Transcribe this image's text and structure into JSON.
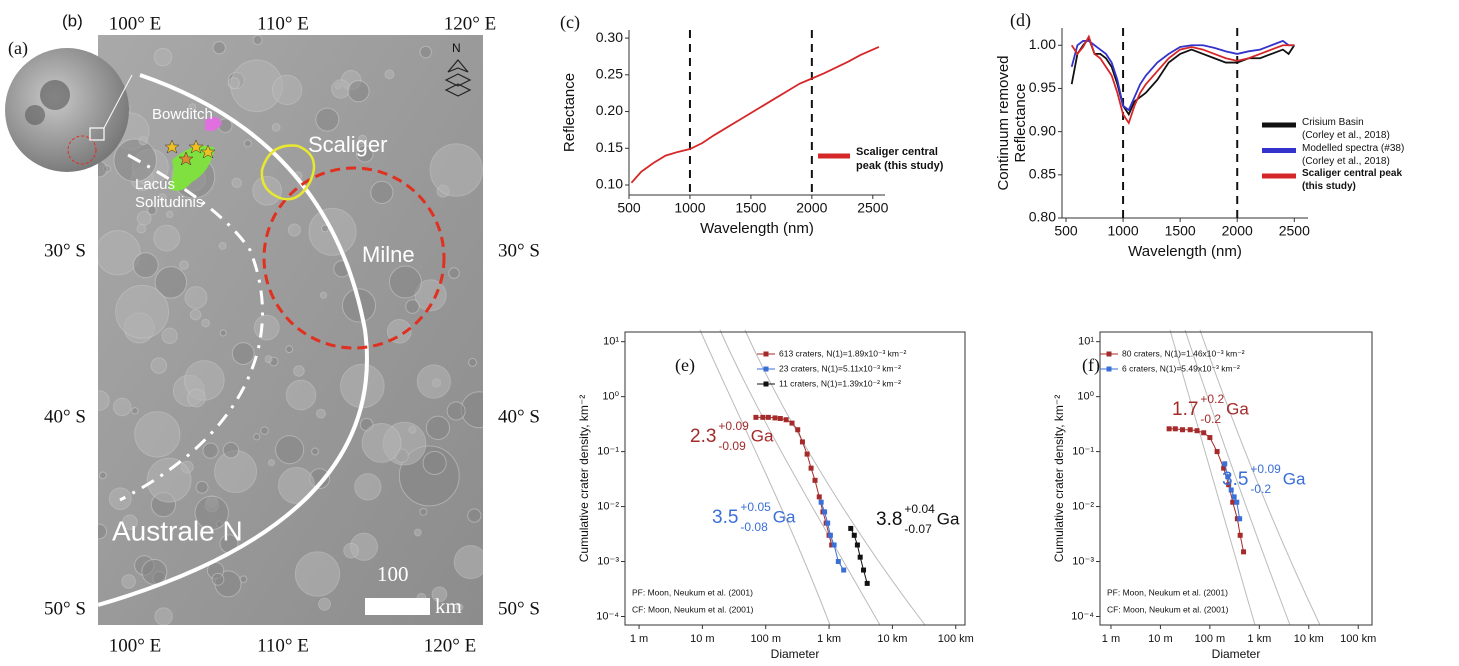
{
  "map": {
    "panel_a": "(a)",
    "panel_b": "(b)",
    "lon_labels": [
      "100° E",
      "110° E",
      "120° E"
    ],
    "lat_labels": [
      "30° S",
      "40° S",
      "50° S"
    ],
    "features": {
      "bowditch": "Bowditch",
      "lacus": "Lacus Solitudinis",
      "scaliger": "Scaliger",
      "milne": "Milne",
      "australe": "Australe N"
    },
    "scale_value": "100",
    "scale_unit": "km",
    "north": "N"
  },
  "chart_data": [
    {
      "type": "line",
      "panel_label": "(c)",
      "x_label": "Wavelength (nm)",
      "y_label": "Reflectance",
      "xlim": [
        500,
        2600
      ],
      "ylim": [
        0.0864,
        0.311
      ],
      "xticks": [
        500,
        1000,
        1500,
        2000,
        2500
      ],
      "yticks": [
        {
          "value": 0.1,
          "label": "0.10"
        },
        0.15,
        {
          "value": 0.2,
          "label": "0.20"
        },
        0.25,
        {
          "value": 0.3,
          "label": "0.30"
        }
      ],
      "vlines": [
        1000,
        2000
      ],
      "x": [
        520,
        600,
        700,
        800,
        900,
        1000,
        1100,
        1200,
        1300,
        1400,
        1500,
        1600,
        1700,
        1800,
        1900,
        2000,
        2100,
        2200,
        2300,
        2400,
        2550
      ],
      "series": [
        {
          "name": "Scaliger central peak (this study)",
          "color": "#d62728",
          "values": [
            0.103,
            0.118,
            0.13,
            0.14,
            0.145,
            0.149,
            0.157,
            0.168,
            0.178,
            0.188,
            0.198,
            0.208,
            0.218,
            0.228,
            0.238,
            0.245,
            0.252,
            0.26,
            0.268,
            0.277,
            0.288
          ]
        }
      ]
    },
    {
      "type": "line",
      "panel_label": "(d)",
      "x_label": "Wavelength (nm)",
      "y_label": [
        "Continuum removed",
        "Reflectance"
      ],
      "xlim": [
        465,
        2620
      ],
      "ylim": [
        0.8,
        1.02
      ],
      "xticks": [
        500,
        1000,
        1500,
        2000,
        2500
      ],
      "yticks": [
        {
          "value": 0.8,
          "label": "0.80"
        },
        0.85,
        {
          "value": 0.9,
          "label": "0.90"
        },
        0.95,
        {
          "value": 1.0,
          "label": "1.00"
        }
      ],
      "vlines": [
        1000,
        2000
      ],
      "x": [
        550,
        600,
        650,
        700,
        750,
        800,
        850,
        900,
        950,
        1000,
        1050,
        1100,
        1150,
        1200,
        1300,
        1400,
        1500,
        1600,
        1700,
        1800,
        1900,
        2000,
        2100,
        2200,
        2300,
        2400,
        2450,
        2500
      ],
      "series": [
        {
          "name": "Crisium Basin",
          "source": "(Corley et al., 2018)",
          "color": "#111111",
          "values": [
            0.955,
            0.99,
            1.0,
            1.008,
            0.99,
            0.99,
            0.985,
            0.975,
            0.955,
            0.93,
            0.92,
            0.935,
            0.94,
            0.945,
            0.96,
            0.98,
            0.99,
            0.995,
            0.99,
            0.985,
            0.98,
            0.98,
            0.985,
            0.985,
            0.99,
            0.995,
            0.99,
            1.0
          ]
        },
        {
          "name": "Modelled spectra (#38)",
          "source": "(Corley et al., 2018)",
          "color": "#3333cc",
          "values": [
            0.975,
            1.0,
            1.005,
            1.005,
            1.0,
            0.995,
            0.99,
            0.98,
            0.96,
            0.93,
            0.925,
            0.94,
            0.955,
            0.965,
            0.98,
            0.99,
            0.998,
            1.0,
            1.0,
            0.997,
            0.993,
            0.99,
            0.993,
            0.995,
            1.0,
            1.005,
            1.0,
            1.0
          ]
        },
        {
          "name": "Scaliger central peak",
          "source": "(this study)",
          "color": "#d62728",
          "values": [
            1.0,
            0.99,
            0.998,
            1.01,
            0.99,
            0.985,
            0.975,
            0.965,
            0.945,
            0.92,
            0.91,
            0.93,
            0.945,
            0.955,
            0.97,
            0.985,
            0.995,
            0.998,
            0.995,
            0.99,
            0.985,
            0.982,
            0.985,
            0.99,
            0.995,
            1.0,
            1.0,
            1.0
          ]
        }
      ]
    },
    {
      "type": "scatter",
      "panel_label": "(e)",
      "x_label": "Diameter",
      "y_label": "Cumulative crater density, km⁻²",
      "log_x": true,
      "log_y": true,
      "xlim": [
        0.6,
        140000
      ],
      "ylim": [
        7e-05,
        15
      ],
      "xticks": [
        {
          "value": 1,
          "label": "1 m"
        },
        {
          "value": 10,
          "label": "10 m"
        },
        {
          "value": 100,
          "label": "100 m"
        },
        {
          "value": 1000,
          "label": "1 km"
        },
        {
          "value": 10000,
          "label": "10 km"
        },
        {
          "value": 100000,
          "label": "100 km"
        }
      ],
      "yticks": [
        {
          "value": 0.0001,
          "label": "10⁻⁴"
        },
        {
          "value": 0.001,
          "label": "10⁻³"
        },
        {
          "value": 0.01,
          "label": "10⁻²"
        },
        {
          "value": 0.1,
          "label": "10⁻¹"
        },
        {
          "value": 1,
          "label": "10⁰"
        },
        {
          "value": 10,
          "label": "10¹"
        }
      ],
      "series": [
        {
          "name": "613 craters, N(1)=1.89x10⁻³ km⁻²",
          "color": "#a52a2a",
          "x": [
            70,
            90,
            110,
            140,
            170,
            210,
            260,
            320,
            380,
            450,
            520,
            600,
            700,
            800,
            900,
            1000,
            1100
          ],
          "values": [
            0.42,
            0.42,
            0.42,
            0.41,
            0.4,
            0.38,
            0.33,
            0.25,
            0.15,
            0.09,
            0.05,
            0.03,
            0.015,
            0.008,
            0.005,
            0.003,
            0.002
          ]
        },
        {
          "name": "23 craters, N(1)=5.11x10⁻³ km⁻²",
          "color": "#3a6fd8",
          "x": [
            750,
            850,
            950,
            1050,
            1200,
            1400,
            1700
          ],
          "values": [
            0.012,
            0.008,
            0.005,
            0.003,
            0.002,
            0.001,
            0.0007
          ]
        },
        {
          "name": "11 craters, N(1)=1.39x10⁻² km⁻²",
          "color": "#111111",
          "x": [
            2200,
            2500,
            2800,
            3100,
            3500,
            4000
          ],
          "values": [
            0.004,
            0.003,
            0.002,
            0.0012,
            0.0007,
            0.0004
          ]
        }
      ],
      "ages": [
        {
          "age": "2.3",
          "plus": "+0.09",
          "minus": "-0.09",
          "unit": "Ga",
          "color": "#a52a2a"
        },
        {
          "age": "3.5",
          "plus": "+0.05",
          "minus": "-0.08",
          "unit": "Ga",
          "color": "#3a6fd8"
        },
        {
          "age": "3.8",
          "plus": "+0.04",
          "minus": "-0.07",
          "unit": "Ga",
          "color": "#111111"
        }
      ],
      "notes": [
        "PF: Moon, Neukum et al. (2001)",
        "CF: Moon, Neukum et al. (2001)"
      ]
    },
    {
      "type": "scatter",
      "panel_label": "(f)",
      "x_label": "Diameter",
      "y_label": "Cumulative crater density, km⁻²",
      "log_x": true,
      "log_y": true,
      "xlim": [
        0.6,
        190000
      ],
      "ylim": [
        7e-05,
        15
      ],
      "xticks": [
        {
          "value": 1,
          "label": "1 m"
        },
        {
          "value": 10,
          "label": "10 m"
        },
        {
          "value": 100,
          "label": "100 m"
        },
        {
          "value": 1000,
          "label": "1 km"
        },
        {
          "value": 10000,
          "label": "10 km"
        },
        {
          "value": 100000,
          "label": "100 km"
        }
      ],
      "yticks": [
        {
          "value": 0.0001,
          "label": "10⁻⁴"
        },
        {
          "value": 0.001,
          "label": "10⁻³"
        },
        {
          "value": 0.01,
          "label": "10⁻²"
        },
        {
          "value": 0.1,
          "label": "10⁻¹"
        },
        {
          "value": 1,
          "label": "10⁰"
        },
        {
          "value": 10,
          "label": "10¹"
        }
      ],
      "series": [
        {
          "name": "80 craters, N(1)=1.46x10⁻³ km⁻²",
          "color": "#a52a2a",
          "x": [
            15,
            20,
            28,
            40,
            55,
            75,
            100,
            140,
            190,
            240,
            290,
            360,
            410,
            480
          ],
          "values": [
            0.26,
            0.26,
            0.25,
            0.25,
            0.24,
            0.22,
            0.18,
            0.1,
            0.05,
            0.025,
            0.012,
            0.006,
            0.003,
            0.0015
          ]
        },
        {
          "name": "6 craters, N(1)=5.49x10⁻³ km⁻²",
          "color": "#3a6fd8",
          "x": [
            200,
            230,
            270,
            310,
            350,
            400
          ],
          "values": [
            0.06,
            0.035,
            0.02,
            0.015,
            0.012,
            0.006
          ]
        }
      ],
      "ages": [
        {
          "age": "1.7",
          "plus": "+0.2",
          "minus": "-0.2",
          "unit": "Ga",
          "color": "#a52a2a"
        },
        {
          "age": "3.5",
          "plus": "+0.09",
          "minus": "-0.2",
          "unit": "Ga",
          "color": "#3a6fd8"
        }
      ],
      "notes": [
        "PF: Moon, Neukum et al. (2001)",
        "CF: Moon, Neukum et al. (2001)"
      ]
    }
  ]
}
